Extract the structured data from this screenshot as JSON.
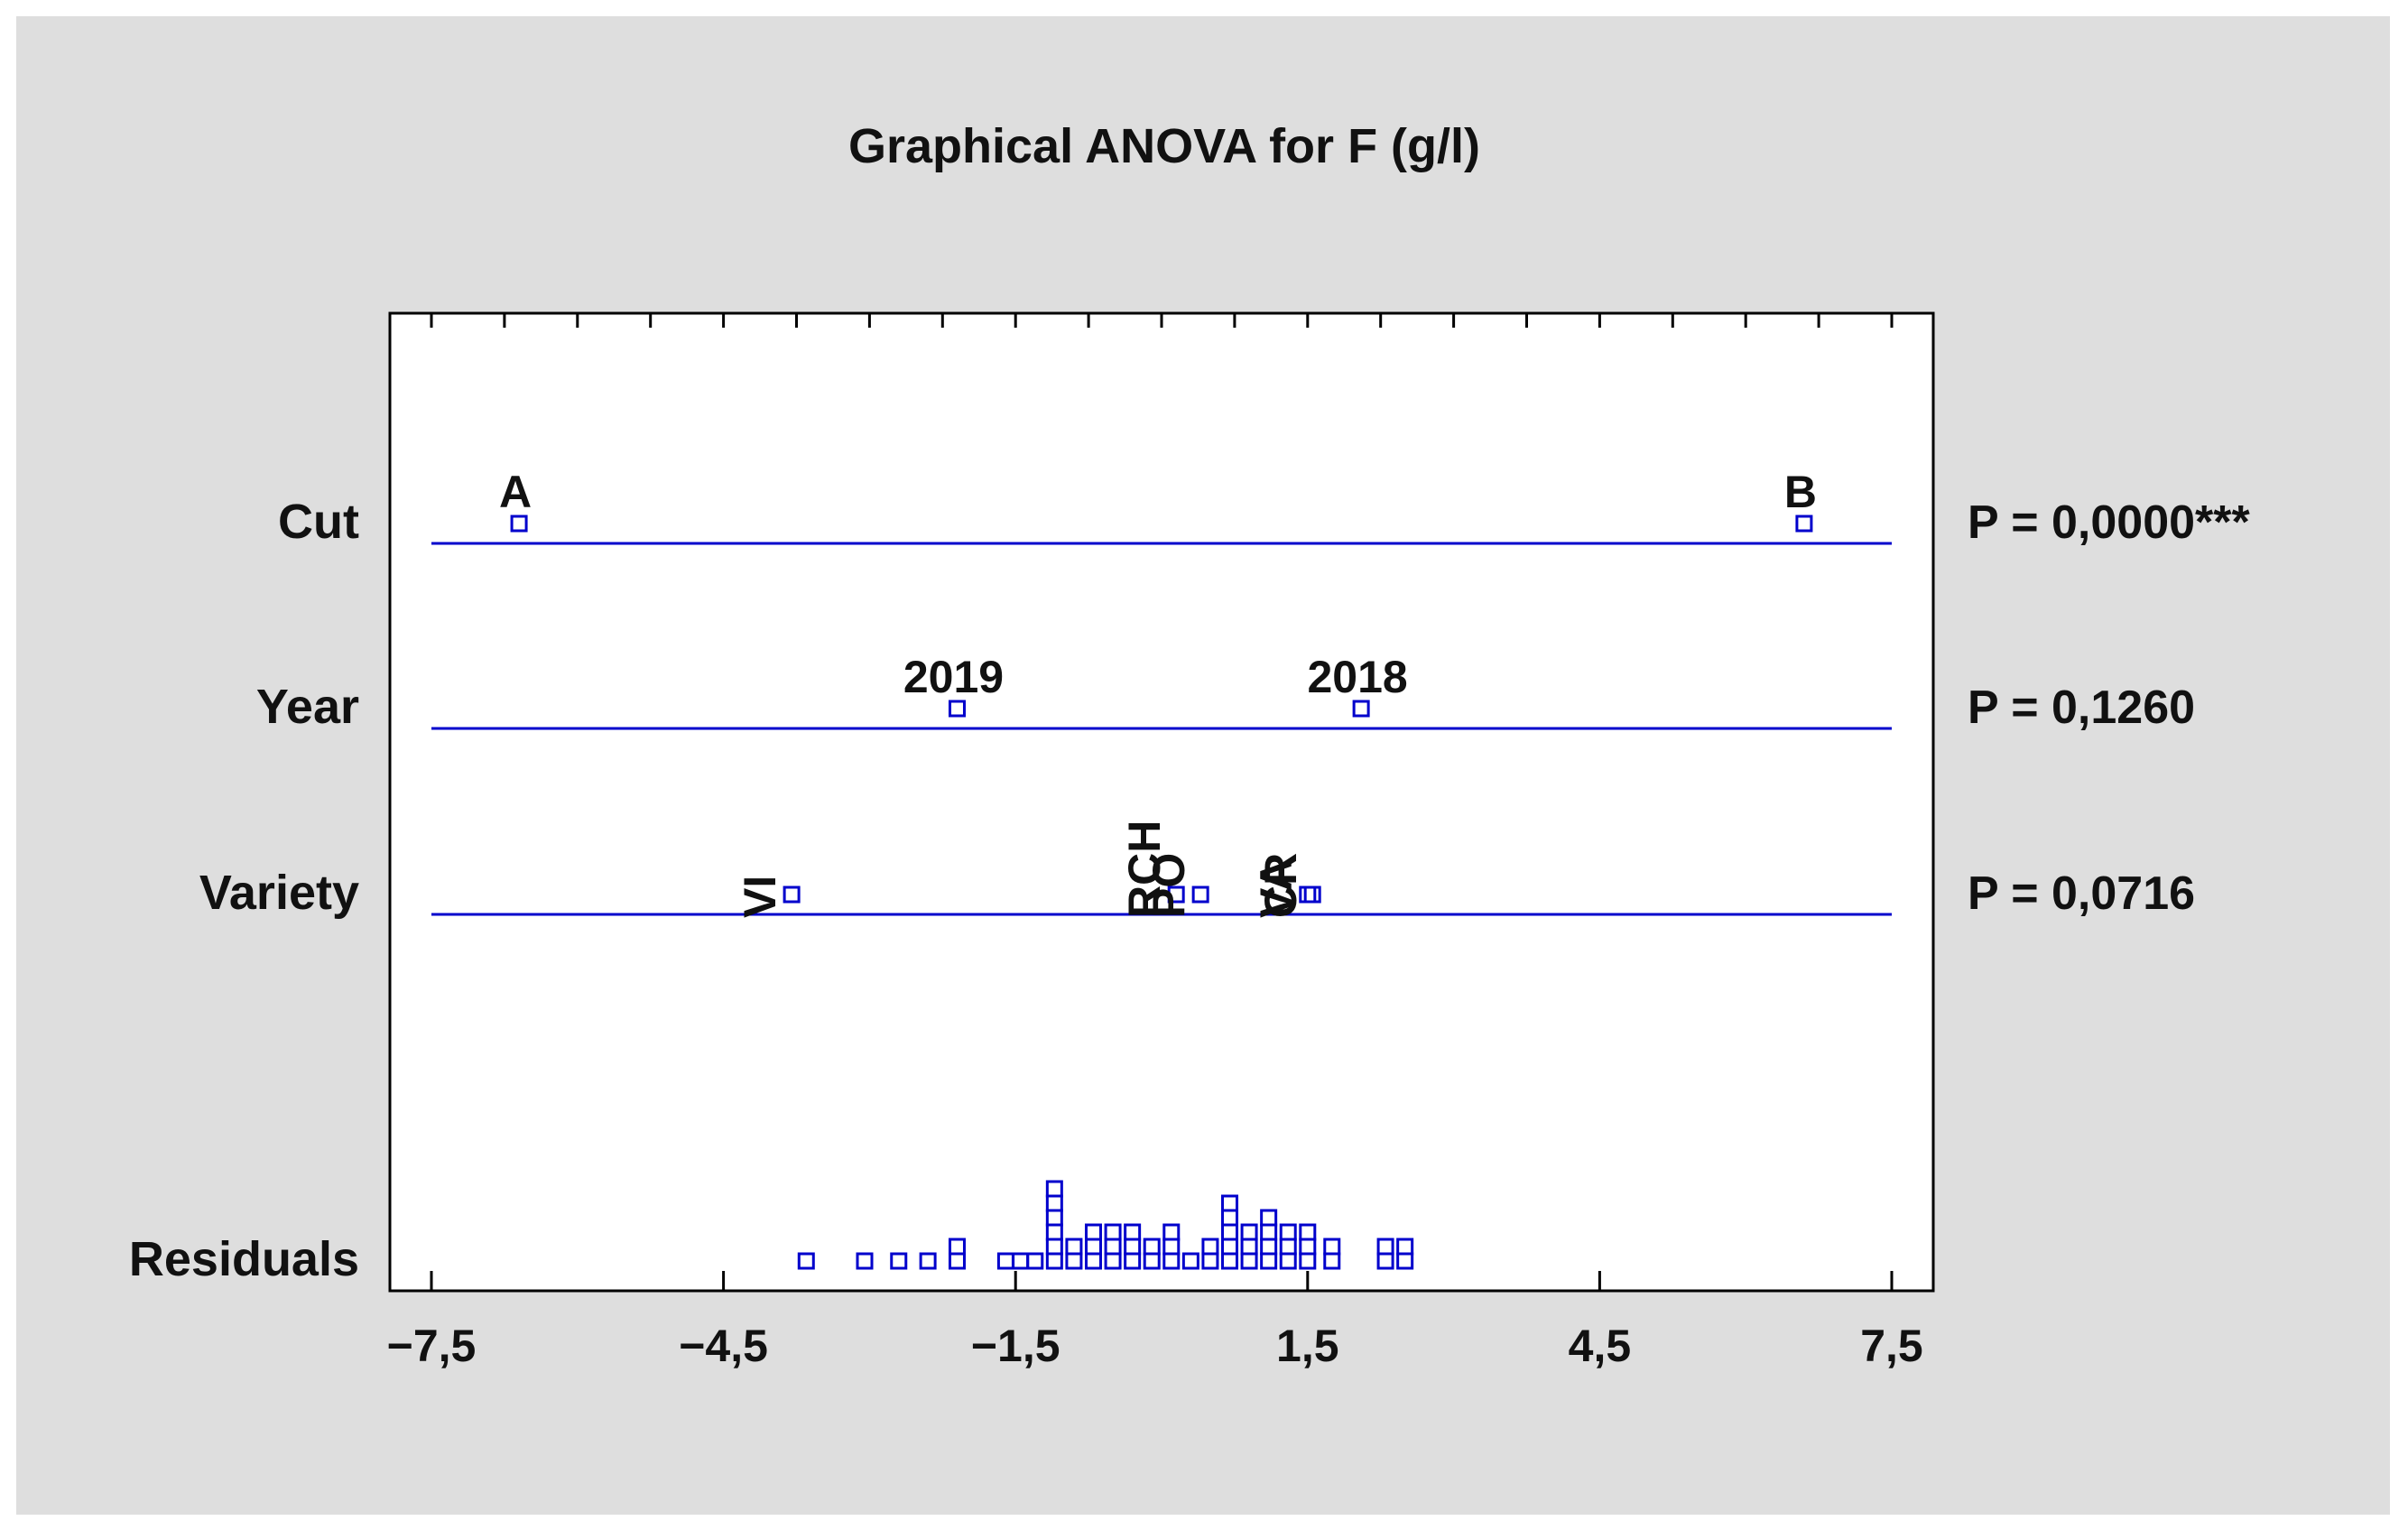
{
  "chart_data": {
    "type": "scatter",
    "title": "Graphical ANOVA for F (g/l)",
    "xlabel": "",
    "ylabel": "",
    "xlim": [
      -8.0,
      8.0
    ],
    "x_ticks": [
      -7.5,
      -4.5,
      -1.5,
      1.5,
      4.5,
      7.5
    ],
    "x_tick_labels": [
      "−7,5",
      "−4,5",
      "−1,5",
      "1,5",
      "4,5",
      "7,5"
    ],
    "grid": false,
    "marker": "square-open",
    "colors": {
      "marker": "#0000cc",
      "row_line": "#0000cc",
      "frame": "#000000",
      "background": "#dedede",
      "plot_bg": "#ffffff"
    },
    "rows": [
      {
        "label": "Cut",
        "p_value": "P = 0,0000***",
        "points": [
          {
            "label": "A",
            "x": -6.6,
            "label_orientation": "horizontal"
          },
          {
            "label": "B",
            "x": 6.6,
            "label_orientation": "horizontal"
          }
        ]
      },
      {
        "label": "Year",
        "p_value": "P = 0,1260",
        "points": [
          {
            "label": "2019",
            "x": -2.1,
            "label_orientation": "horizontal"
          },
          {
            "label": "2018",
            "x": 2.05,
            "label_orientation": "horizontal"
          }
        ]
      },
      {
        "label": "Variety",
        "p_value": "P = 0,0716",
        "points": [
          {
            "label": "VI",
            "x": -3.8,
            "label_orientation": "vertical"
          },
          {
            "label": "RCH",
            "x": 0.15,
            "label_orientation": "vertical"
          },
          {
            "label": "PO",
            "x": 0.4,
            "label_orientation": "vertical"
          },
          {
            "label": "VA",
            "x": 1.5,
            "label_orientation": "vertical"
          },
          {
            "label": "CR",
            "x": 1.55,
            "label_orientation": "vertical"
          }
        ]
      },
      {
        "label": "Residuals",
        "p_value": "",
        "points": [
          {
            "x": -3.65
          },
          {
            "x": -3.05
          },
          {
            "x": -2.7
          },
          {
            "x": -2.4
          },
          {
            "x": -2.1
          },
          {
            "x": -2.1
          },
          {
            "x": -1.6
          },
          {
            "x": -1.45
          },
          {
            "x": -1.3
          },
          {
            "x": -1.1
          },
          {
            "x": -1.1
          },
          {
            "x": -1.1
          },
          {
            "x": -1.1
          },
          {
            "x": -1.1
          },
          {
            "x": -1.1
          },
          {
            "x": -0.9
          },
          {
            "x": -0.9
          },
          {
            "x": -0.7
          },
          {
            "x": -0.7
          },
          {
            "x": -0.7
          },
          {
            "x": -0.5
          },
          {
            "x": -0.5
          },
          {
            "x": -0.5
          },
          {
            "x": -0.3
          },
          {
            "x": -0.3
          },
          {
            "x": -0.3
          },
          {
            "x": -0.1
          },
          {
            "x": -0.1
          },
          {
            "x": 0.1
          },
          {
            "x": 0.1
          },
          {
            "x": 0.1
          },
          {
            "x": 0.3
          },
          {
            "x": 0.5
          },
          {
            "x": 0.5
          },
          {
            "x": 0.7
          },
          {
            "x": 0.7
          },
          {
            "x": 0.7
          },
          {
            "x": 0.7
          },
          {
            "x": 0.7
          },
          {
            "x": 0.9
          },
          {
            "x": 0.9
          },
          {
            "x": 0.9
          },
          {
            "x": 1.1
          },
          {
            "x": 1.1
          },
          {
            "x": 1.1
          },
          {
            "x": 1.1
          },
          {
            "x": 1.3
          },
          {
            "x": 1.3
          },
          {
            "x": 1.3
          },
          {
            "x": 1.5
          },
          {
            "x": 1.5
          },
          {
            "x": 1.5
          },
          {
            "x": 1.75
          },
          {
            "x": 1.75
          },
          {
            "x": 2.3
          },
          {
            "x": 2.3
          },
          {
            "x": 2.5
          },
          {
            "x": 2.5
          }
        ]
      }
    ]
  }
}
